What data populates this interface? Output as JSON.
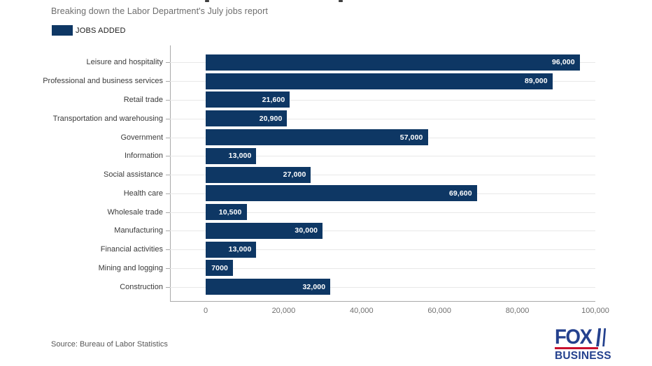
{
  "subtitle": "Breaking down the Labor Department's July jobs report",
  "legend": {
    "label": "JOBS ADDED",
    "swatch_color": "#0e3764"
  },
  "chart_data": {
    "type": "bar",
    "orientation": "horizontal",
    "title": "",
    "xlabel": "",
    "ylabel": "",
    "series_name": "JOBS ADDED",
    "categories": [
      "Leisure and hospitality",
      "Professional and business services",
      "Retail trade",
      "Transportation and warehousing",
      "Government",
      "Information",
      "Social assistance",
      "Health care",
      "Wholesale trade",
      "Manufacturing",
      "Financial activities",
      "Mining and logging",
      "Construction"
    ],
    "values": [
      96000,
      89000,
      21600,
      20900,
      57000,
      13000,
      27000,
      69600,
      10500,
      30000,
      13000,
      7000,
      32000
    ],
    "value_labels": [
      "96,000",
      "89,000",
      "21,600",
      "20,900",
      "57,000",
      "13,000",
      "27,000",
      "69,600",
      "10,500",
      "30,000",
      "13,000",
      "7000",
      "32,000"
    ],
    "xlim": [
      0,
      100000
    ],
    "x_ticks": [
      "0",
      "20,000",
      "40,000",
      "60,000",
      "80,000",
      "100,000"
    ],
    "bar_color": "#0e3764",
    "grid": true,
    "gridline_color": "#e8e8e8",
    "axis_line_color": "#a9a9a9",
    "legend_position": "top-left",
    "value_label_color": "#ffffff"
  },
  "footer": {
    "source": "Source: Bureau of Labor Statistics"
  },
  "logo": {
    "line1": "FOX",
    "line2": "BUSINESS",
    "blue": "#24418e",
    "red": "#c8102e"
  }
}
